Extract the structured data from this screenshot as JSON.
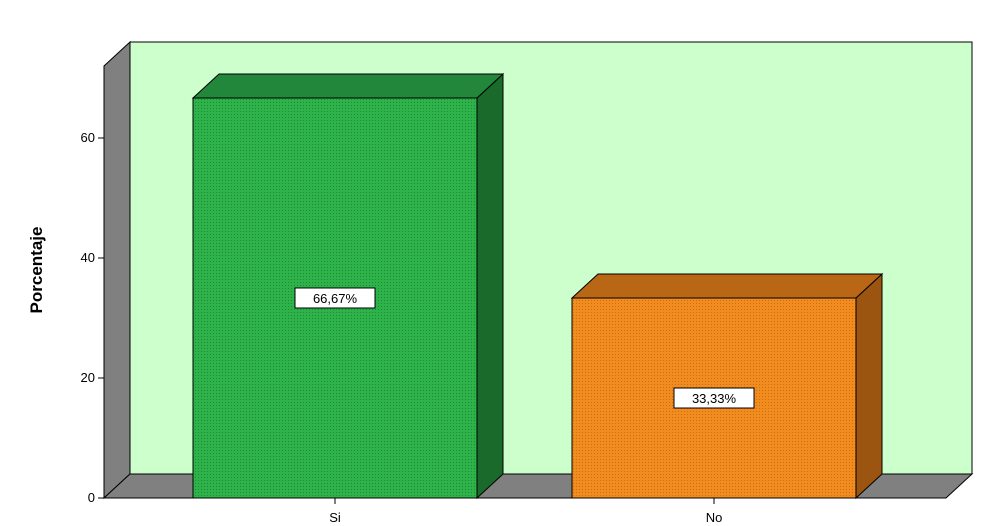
{
  "chart_data": {
    "type": "bar",
    "ylabel": "Porcentaje",
    "xlabel": "",
    "categories": [
      "Si",
      "No"
    ],
    "values": [
      66.67,
      33.33
    ],
    "data_labels": [
      "66,67%",
      "33,33%"
    ],
    "y_ticks": [
      0,
      20,
      40,
      60
    ],
    "ylim": [
      0,
      72
    ],
    "grid": false,
    "legend": "none",
    "three_d": true,
    "colors": {
      "plot_background": "#ccffcc",
      "floor": "#808080",
      "wall_side": "#808080",
      "bars": [
        {
          "front": "#2db34a",
          "side": "#1a6b2b",
          "top": "#22873a"
        },
        {
          "front": "#f28c1e",
          "side": "#9c5511",
          "top": "#b96615"
        }
      ]
    }
  }
}
